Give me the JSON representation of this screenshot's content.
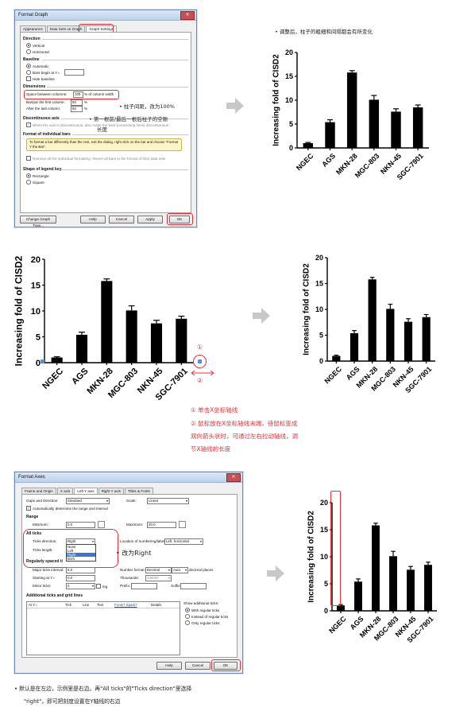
{
  "colors": {
    "accent": "#e0343c",
    "arrow": "#c8c8c8",
    "bar": "#000000"
  },
  "format_graph": {
    "title": "Format Graph",
    "close": "✕",
    "tabs": [
      "Appearance",
      "Data Sets on Graph",
      "Graph Settings"
    ],
    "direction": {
      "header": "Direction",
      "options": [
        "Vertical",
        "Horizontal"
      ]
    },
    "baseline": {
      "header": "Baseline",
      "options": [
        "Automatic",
        "Bars begin at Y=",
        "Hide baseline"
      ]
    },
    "dimensions": {
      "header": "Dimensions",
      "space_label": "Space between columns:",
      "space_value": "100",
      "space_suffix": "% of column width",
      "first_label": "Bar/par the first column:",
      "first_value": "50",
      "last_label": "After the last column:",
      "last_value": "50",
      "pct": "%"
    },
    "discontinuous": {
      "header": "Discontinuous axis",
      "text": "When the axis is discontinuous, also make the bars (connecting lines) discontinuous"
    },
    "individual": {
      "header": "Format of individual bars",
      "text": "To format a bar differently than the rest, exit the dialog, right click on the bar and choose \"Format Y the Bar\".",
      "remove": "Remove all the individual formatting. Revert all bars to the format of their data sets"
    },
    "legend": {
      "header": "Shape of legend key",
      "options": [
        "Rectangle",
        "Square"
      ]
    },
    "buttons": {
      "change": "Change Graph Type...",
      "help": "Help",
      "cancel": "Cancel",
      "apply": "Apply",
      "ok": "OK"
    }
  },
  "annotations": {
    "top_right": "•  调整后，柱子的粗细和间隔都会有所变化",
    "space_note": "•  柱子间距，改为100%",
    "first_last_line1": "•  第一根前/最后一根后柱子的空隙",
    "first_last_line2": "长度",
    "circle1": "①",
    "circle2": "②",
    "step1": "① 单击X坐标轴线",
    "step2_line1": "② 鼠标放在X坐标轴线末端，待鼠标变成",
    "step2_line2": "双向箭头状时，可通过左右拉动轴线，调",
    "step2_line3": "节X轴线的长度",
    "right_note": "•  改为Right",
    "bottom_line1": "•  默认是在左边，示例里是右边。再\"All ticks\"的\"Ticks direction\"里选择",
    "bottom_line2": "\"right\"，即可把刻度设置在Y轴线的右边"
  },
  "format_axes": {
    "title": "Format Axes",
    "close": "✕",
    "tabs": [
      "Frame and Origin",
      "X axis",
      "Left Y axis",
      "Right Y axis",
      "Titles & Fonts"
    ],
    "gaps_label": "Gaps and Direction:",
    "gaps_value": "Standard",
    "scale_label": "Scale:",
    "scale_value": "Linear",
    "auto_text": "Automatically determine the range and interval",
    "range_header": "Range",
    "minimum_label": "Minimum:",
    "minimum_value": "0.0",
    "maximum_label": "Maximum:",
    "maximum_value": "20.0",
    "all_ticks_header": "All ticks",
    "ticks_dir_label": "Ticks direction:",
    "ticks_dir_value": "Right",
    "ticks_len_label": "Ticks length:",
    "dropdown_options": [
      "None",
      "Left",
      "Right",
      "Both"
    ],
    "location_label": "Location of numbering/labeling:",
    "location_value": "Left, horizontal",
    "regular_header": "Regularly spaced ti",
    "major_label": "Major ticks interval:",
    "major_value": "5.0",
    "starting_label": "Starting at Y=",
    "starting_value": "0.0",
    "minor_label": "Minor ticks:",
    "minor_value": "0",
    "log_label": "log",
    "number_format_label": "Number format:",
    "number_format_value": "Decimal",
    "number_format_auto": "Auto",
    "decimal_places": "decimal places",
    "thousands_label": "Thousands:",
    "thousands_value": "100000",
    "prefix_label": "Prefix:",
    "suffix_label": "Suffix:",
    "additional_header": "Additional ticks and grid lines",
    "table_headers": [
      "At Y=",
      "Tick",
      "Line",
      "Text",
      "Fonts? Spark?",
      "Details"
    ],
    "show_label": "Show additional ticks:",
    "show_options": [
      "With regular ticks",
      "Instead of regular ticks",
      "Only regular ticks"
    ],
    "buttons": {
      "help": "Help",
      "cancel": "Cancel",
      "ok": "OK"
    }
  },
  "chart_data": [
    {
      "type": "bar",
      "ylabel": "Increasing fold of CISD2",
      "categories": [
        "NGEC",
        "AGS",
        "MKN-28",
        "MGC-803",
        "NKN-45",
        "SGC-7901"
      ],
      "values": [
        1.0,
        5.4,
        15.8,
        10.1,
        7.6,
        8.5
      ],
      "errors": [
        0.15,
        0.5,
        0.4,
        0.9,
        0.6,
        0.5
      ],
      "ylim": [
        0,
        20
      ],
      "yticks": [
        0,
        5,
        10,
        15,
        20
      ]
    },
    {
      "type": "bar",
      "ylabel": "Increasing fold of CISD2",
      "categories": [
        "NGEC",
        "AGS",
        "MKN-28",
        "MGC-803",
        "NKN-45",
        "SGC-7901"
      ],
      "values": [
        1.0,
        5.4,
        15.8,
        10.1,
        7.6,
        8.5
      ],
      "errors": [
        0.15,
        0.5,
        0.4,
        0.9,
        0.6,
        0.5
      ],
      "ylim": [
        0,
        20
      ],
      "yticks": [
        0,
        5,
        10,
        15,
        20
      ]
    },
    {
      "type": "bar",
      "ylabel": "Increasing fold of CISD2",
      "categories": [
        "NGEC",
        "AGS",
        "MKN-28",
        "MGC-803",
        "NKN-45",
        "SGC-7901"
      ],
      "values": [
        1.0,
        5.4,
        15.8,
        10.1,
        7.6,
        8.5
      ],
      "errors": [
        0.15,
        0.5,
        0.4,
        0.9,
        0.6,
        0.5
      ],
      "ylim": [
        0,
        20
      ],
      "yticks": [
        0,
        5,
        10,
        15,
        20
      ]
    },
    {
      "type": "bar",
      "ylabel": "Increasing fold of CISD2",
      "categories": [
        "NGEC",
        "AGS",
        "MKN-28",
        "MGC-803",
        "NKN-45",
        "SGC-7901"
      ],
      "values": [
        1.0,
        5.4,
        15.8,
        10.1,
        7.6,
        8.5
      ],
      "errors": [
        0.15,
        0.5,
        0.4,
        0.9,
        0.6,
        0.5
      ],
      "ylim": [
        0,
        20
      ],
      "yticks": [
        0,
        5,
        10,
        15,
        20
      ]
    }
  ]
}
